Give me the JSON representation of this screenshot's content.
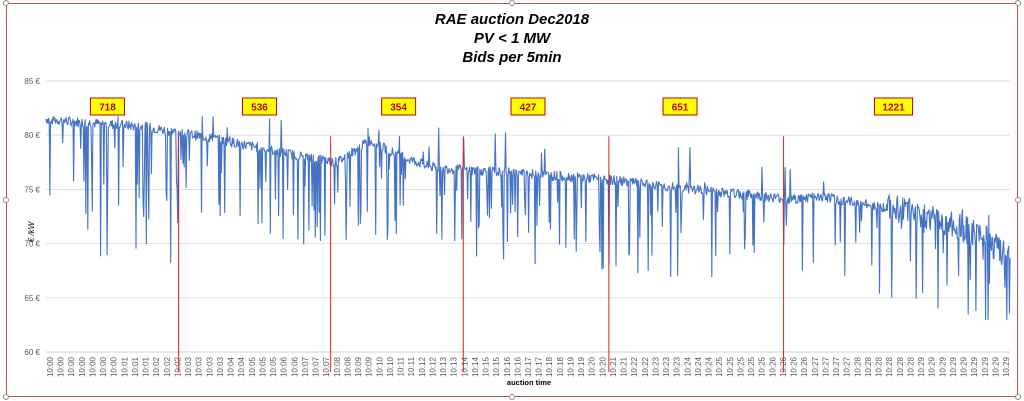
{
  "chart_data": {
    "type": "line",
    "title_lines": [
      "RAE auction Dec2018",
      "PV < 1 MW",
      "Bids per 5min"
    ],
    "xlabel": "auction time",
    "ylabel": "€ /kW",
    "ylim": [
      60,
      85
    ],
    "y_ticks": [
      "60 €",
      "65 €",
      "70 €",
      "75 €",
      "80 €",
      "85 €"
    ],
    "y_tick_values": [
      60,
      65,
      70,
      75,
      80,
      85
    ],
    "x_start_minute": 0,
    "x_end_minute": 29.8,
    "x_tick_labels": [
      "10:00",
      "10:00",
      "10:00",
      "10:00",
      "10:00",
      "10:00",
      "10:00",
      "10:01",
      "10:01",
      "10:01",
      "10:02",
      "10:02",
      "10:02",
      "10:03",
      "10:03",
      "10:03",
      "10:03",
      "10:04",
      "10:04",
      "10:05",
      "10:05",
      "10:05",
      "10:06",
      "10:06",
      "10:07",
      "10:07",
      "10:07",
      "10:08",
      "10:08",
      "10:09",
      "10:09",
      "10:10",
      "10:10",
      "10:11",
      "10:11",
      "10:12",
      "10:12",
      "10:13",
      "10:13",
      "10:14",
      "10:14",
      "10:15",
      "10:15",
      "10:16",
      "10:16",
      "10:17",
      "10:17",
      "10:18",
      "10:18",
      "10:19",
      "10:19",
      "10:20",
      "10:20",
      "10:21",
      "10:21",
      "10:22",
      "10:22",
      "10:23",
      "10:23",
      "10:23",
      "10:24",
      "10:24",
      "10:24",
      "10:25",
      "10:25",
      "10:25",
      "10:25",
      "10:25",
      "10:26",
      "10:26",
      "10:26",
      "10:26",
      "10:27",
      "10:27",
      "10:27",
      "10:27",
      "10:28",
      "10:28",
      "10:28",
      "10:28",
      "10:28",
      "10:28",
      "10:29",
      "10:29",
      "10:29",
      "10:29",
      "10:29",
      "10:29",
      "10:29",
      "10:29",
      "10:29"
    ],
    "grid": true,
    "series": [
      {
        "color": "#4472c4",
        "x_minutes": [
          0,
          1,
          2,
          3,
          4,
          5,
          6,
          7,
          8,
          9,
          10,
          11,
          12,
          13,
          14,
          15,
          16,
          17,
          18,
          19,
          20,
          21,
          22,
          23,
          24,
          25,
          26,
          27,
          28,
          29,
          29.8
        ],
        "values": [
          81.5,
          81.2,
          81,
          80.8,
          80.3,
          79.8,
          79.2,
          78.6,
          78,
          77.5,
          79.5,
          78,
          77,
          76.8,
          76.6,
          76.4,
          76.2,
          76,
          75.7,
          75.3,
          75,
          74.7,
          74.4,
          74.1,
          74.3,
          73.8,
          73.3,
          72.7,
          71.8,
          70.5,
          68.5
        ]
      }
    ],
    "period_boundaries_minutes": [
      4.1,
      8.8,
      12.9,
      17.4,
      22.8
    ],
    "bid_counts": [
      {
        "label": "718",
        "minute": 1.9
      },
      {
        "label": "536",
        "minute": 6.6
      },
      {
        "label": "354",
        "minute": 10.9
      },
      {
        "label": "427",
        "minute": 14.9
      },
      {
        "label": "651",
        "minute": 19.6
      },
      {
        "label": "1221",
        "minute": 26.2
      }
    ],
    "colors": {
      "line": "#4472c4",
      "boundary": "#e02020",
      "box_fill": "#ffff00",
      "box_border": "#c00000",
      "box_text": "#c00000",
      "grid": "#d9d9d9"
    }
  }
}
